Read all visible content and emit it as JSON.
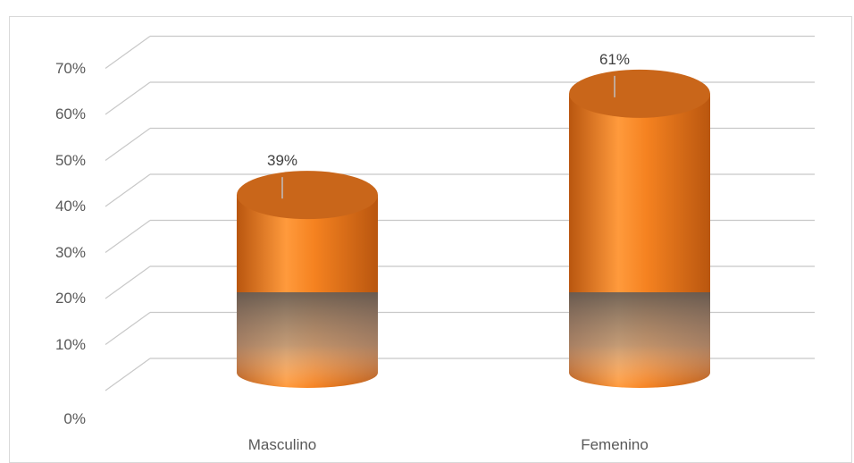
{
  "chart_data": {
    "type": "bar",
    "style": "3d-cylinder",
    "categories": [
      "Masculino",
      "Femenino"
    ],
    "values": [
      39,
      61
    ],
    "value_labels": [
      "39%",
      "61%"
    ],
    "ylim": [
      0,
      70
    ],
    "yticks": [
      "0%",
      "10%",
      "20%",
      "30%",
      "40%",
      "50%",
      "60%",
      "70%"
    ],
    "title": "",
    "xlabel": "",
    "ylabel": "",
    "grid": true,
    "legend": "none",
    "colors": {
      "bar": "#f58220",
      "bar_dark": "#b9560f",
      "grid": "#c8c8c8"
    }
  }
}
